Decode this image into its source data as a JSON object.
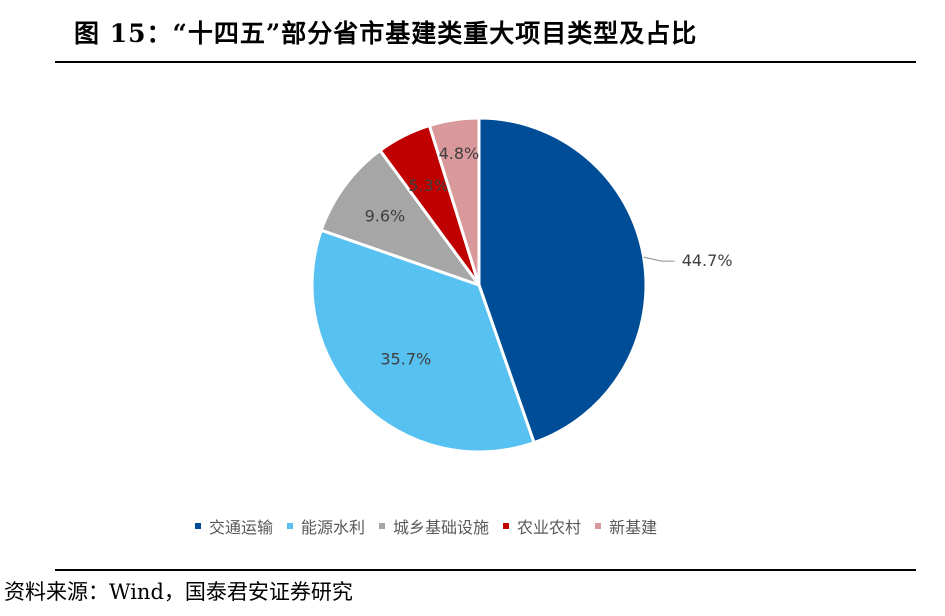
{
  "header": {
    "title": "图 15：“十四五”部分省市基建类重大项目类型及占比"
  },
  "footer": {
    "source": "资料来源：Wind，国泰君安证券研究"
  },
  "colors": {
    "slices": [
      "#004d97",
      "#57c1f1",
      "#a6a6a6",
      "#c00000",
      "#d9999a"
    ],
    "label_text": "#404040",
    "legend_text": "#595959"
  },
  "chart_data": {
    "type": "pie",
    "categories": [
      "交通运输",
      "能源水利",
      "城乡基础设施",
      "农业农村",
      "新基建"
    ],
    "values": [
      44.7,
      35.7,
      9.6,
      5.3,
      4.8
    ],
    "data_labels": [
      "44.7%",
      "35.7%",
      "9.6%",
      "5.3%",
      "4.8%"
    ],
    "start_angle": "12 o'clock",
    "direction": "clockwise",
    "legend": "bottom"
  }
}
